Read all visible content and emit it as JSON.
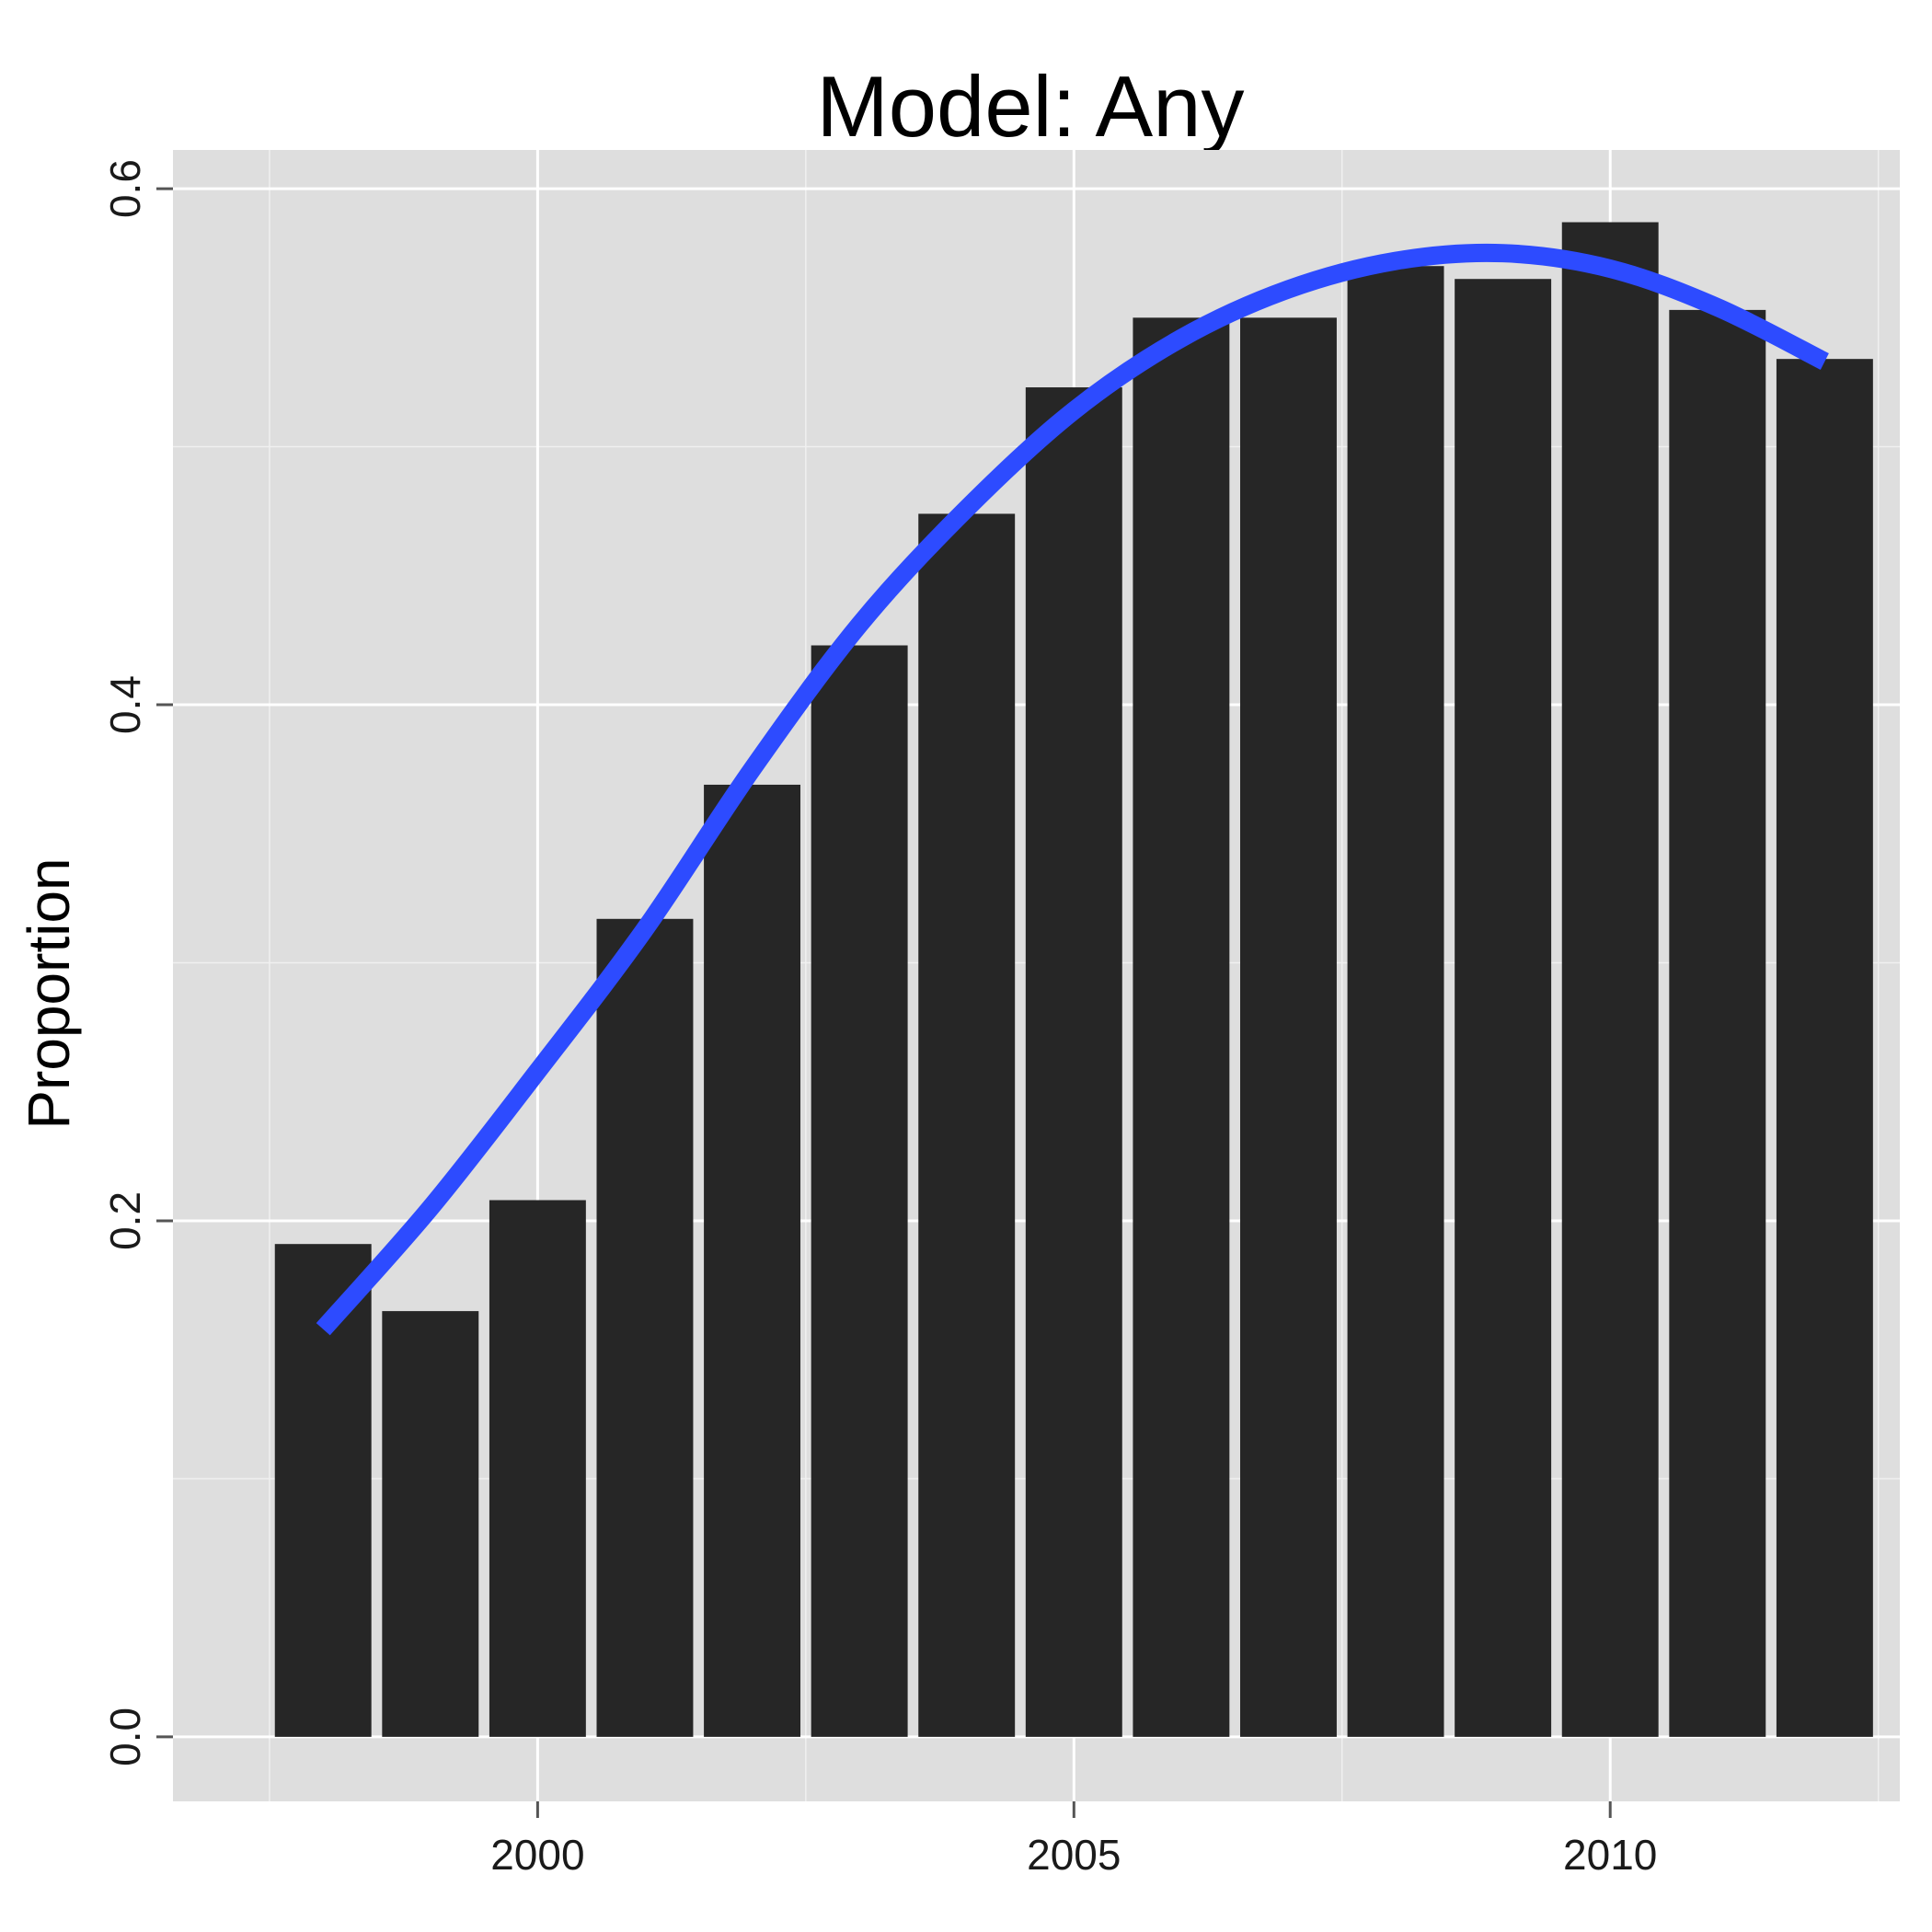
{
  "chart_data": {
    "type": "bar",
    "title": "Model: Any",
    "xlabel": "",
    "ylabel": "Proportion",
    "xlim": [
      1996.6,
      2012.7
    ],
    "ylim": [
      -0.025,
      0.615
    ],
    "x_ticks": [
      2000,
      2005,
      2010
    ],
    "y_ticks": [
      0.0,
      0.2,
      0.4,
      0.6
    ],
    "x_tick_labels": [
      "2000",
      "2005",
      "2010"
    ],
    "y_tick_labels": [
      "0.0",
      "0.2",
      "0.4",
      "0.6"
    ],
    "grid": true,
    "bar_width_years": 0.9,
    "colors": {
      "background": "#dedede",
      "grid_major": "#ffffff",
      "grid_minor": "#f0f0f0",
      "bar": "#262626",
      "smooth_line": "#2d4bff",
      "tick": "#555555"
    },
    "bars": {
      "x": [
        1998,
        1999,
        2000,
        2001,
        2002,
        2003,
        2004,
        2005,
        2006,
        2007,
        2008,
        2009,
        2010,
        2011,
        2012
      ],
      "values": [
        0.191,
        0.165,
        0.208,
        0.317,
        0.369,
        0.423,
        0.474,
        0.523,
        0.55,
        0.55,
        0.57,
        0.565,
        0.587,
        0.553,
        0.534
      ]
    },
    "series": [
      {
        "type": "smooth-line",
        "x": [
          1998,
          1999,
          2000,
          2001,
          2002,
          2003,
          2004,
          2005,
          2006,
          2007,
          2008,
          2009,
          2010,
          2011,
          2012
        ],
        "values": [
          0.158,
          0.205,
          0.258,
          0.313,
          0.375,
          0.431,
          0.476,
          0.514,
          0.542,
          0.561,
          0.572,
          0.575,
          0.569,
          0.554,
          0.533
        ]
      }
    ]
  }
}
